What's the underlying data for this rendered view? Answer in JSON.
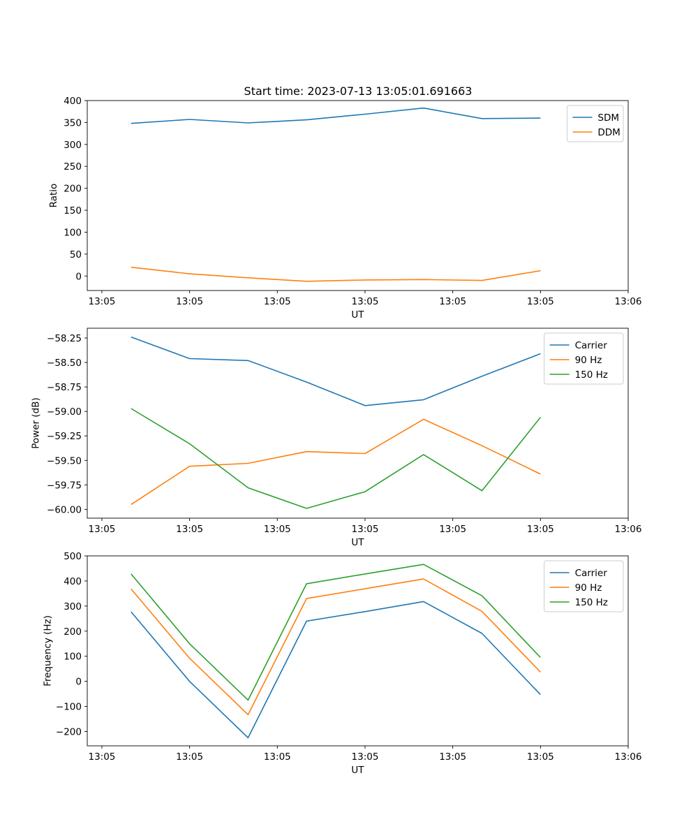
{
  "figure": {
    "title": "Start time: 2023-07-13 13:05:01.691663"
  },
  "chart_data": [
    {
      "type": "line",
      "title": "Start time: 2023-07-13 13:05:01.691663",
      "xlabel": "UT",
      "ylabel": "Ratio",
      "x_tick_labels": [
        "13:05",
        "13:05",
        "13:05",
        "13:05",
        "13:05",
        "13:05",
        "13:06"
      ],
      "x_tick_positions": [
        -0.5,
        1.0,
        2.5,
        4.0,
        5.5,
        7.0,
        8.5
      ],
      "x_range": [
        -0.75,
        8.5
      ],
      "y_ticks": [
        0,
        50,
        100,
        150,
        200,
        250,
        300,
        350,
        400
      ],
      "y_tick_labels": [
        "0",
        "50",
        "100",
        "150",
        "200",
        "250",
        "300",
        "350",
        "400"
      ],
      "ylim": [
        -33,
        400
      ],
      "legend": "upper-right",
      "x": [
        0,
        1,
        2,
        3,
        4,
        5,
        6,
        7
      ],
      "series": [
        {
          "name": "SDM",
          "color": "#1f77b4",
          "values": [
            348,
            357,
            349,
            356,
            369,
            383,
            359,
            360
          ]
        },
        {
          "name": "DDM",
          "color": "#ff7f0e",
          "values": [
            20,
            5,
            -4,
            -12,
            -9,
            -8,
            -10,
            12
          ]
        }
      ]
    },
    {
      "type": "line",
      "title": "",
      "xlabel": "UT",
      "ylabel": "Power (dB)",
      "x_tick_labels": [
        "13:05",
        "13:05",
        "13:05",
        "13:05",
        "13:05",
        "13:05",
        "13:06"
      ],
      "x_tick_positions": [
        -0.5,
        1.0,
        2.5,
        4.0,
        5.5,
        7.0,
        8.5
      ],
      "x_range": [
        -0.75,
        8.5
      ],
      "y_ticks": [
        -60.0,
        -59.75,
        -59.5,
        -59.25,
        -59.0,
        -58.75,
        -58.5,
        -58.25
      ],
      "y_tick_labels": [
        "−60.00",
        "−59.75",
        "−59.50",
        "−59.25",
        "−59.00",
        "−58.75",
        "−58.50",
        "−58.25"
      ],
      "ylim": [
        -60.09,
        -58.15
      ],
      "legend": "upper-right",
      "x": [
        0,
        1,
        2,
        3,
        4,
        5,
        6,
        7
      ],
      "series": [
        {
          "name": "Carrier",
          "color": "#1f77b4",
          "values": [
            -58.24,
            -58.46,
            -58.48,
            -58.7,
            -58.94,
            -58.88,
            -58.64,
            -58.41
          ]
        },
        {
          "name": "90 Hz",
          "color": "#ff7f0e",
          "values": [
            -59.95,
            -59.56,
            -59.53,
            -59.41,
            -59.43,
            -59.08,
            -59.35,
            -59.64
          ]
        },
        {
          "name": "150 Hz",
          "color": "#2ca02c",
          "values": [
            -58.97,
            -59.33,
            -59.78,
            -59.99,
            -59.82,
            -59.44,
            -59.81,
            -59.06
          ]
        }
      ]
    },
    {
      "type": "line",
      "title": "",
      "xlabel": "UT",
      "ylabel": "Frequency (Hz)",
      "x_tick_labels": [
        "13:05",
        "13:05",
        "13:05",
        "13:05",
        "13:05",
        "13:05",
        "13:06"
      ],
      "x_tick_positions": [
        -0.5,
        1.0,
        2.5,
        4.0,
        5.5,
        7.0,
        8.5
      ],
      "x_range": [
        -0.75,
        8.5
      ],
      "y_ticks": [
        -200,
        -100,
        0,
        100,
        200,
        300,
        400,
        500
      ],
      "y_tick_labels": [
        "−200",
        "−100",
        "0",
        "100",
        "200",
        "300",
        "400",
        "500"
      ],
      "ylim": [
        -257,
        500
      ],
      "legend": "upper-right",
      "x": [
        0,
        1,
        2,
        3,
        4,
        5,
        6,
        7
      ],
      "series": [
        {
          "name": "Carrier",
          "color": "#1f77b4",
          "values": [
            277,
            0,
            -225,
            240,
            278,
            318,
            191,
            -53
          ]
        },
        {
          "name": "90 Hz",
          "color": "#ff7f0e",
          "values": [
            368,
            92,
            -133,
            330,
            369,
            408,
            279,
            37
          ]
        },
        {
          "name": "150 Hz",
          "color": "#2ca02c",
          "values": [
            428,
            150,
            -75,
            389,
            428,
            466,
            341,
            95
          ]
        }
      ]
    }
  ]
}
